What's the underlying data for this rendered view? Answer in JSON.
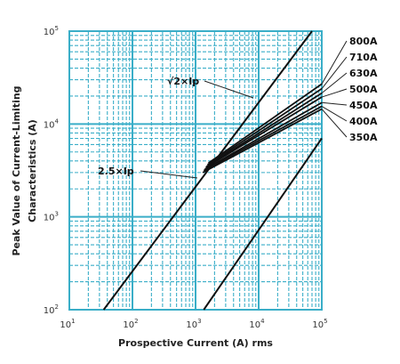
{
  "chart_data": {
    "type": "line",
    "xscale": "log",
    "yscale": "log",
    "xlim": [
      10,
      100000
    ],
    "ylim": [
      100,
      100000
    ],
    "grid": true,
    "grid_color": "#3aaec8",
    "line_color": "#111111",
    "xlabel": "Prospective Current (A) rms",
    "ylabel_line1": "Peak Value of Current-Limiting",
    "ylabel_line2": "Characteristics (A)",
    "x_ticks": [
      {
        "base": "10",
        "exp": "1"
      },
      {
        "base": "10",
        "exp": "2"
      },
      {
        "base": "10",
        "exp": "3"
      },
      {
        "base": "10",
        "exp": "4"
      },
      {
        "base": "10",
        "exp": "5"
      }
    ],
    "y_ticks": [
      {
        "base": "10",
        "exp": "2"
      },
      {
        "base": "10",
        "exp": "3"
      },
      {
        "base": "10",
        "exp": "4"
      },
      {
        "base": "10",
        "exp": "5"
      }
    ],
    "reference_lines": [
      {
        "label": "√2×Ip",
        "x": [
          35,
          70000
        ],
        "y": [
          100,
          100000
        ]
      },
      {
        "label": "2.5×Ip",
        "x": [
          1350,
          100000
        ],
        "y": [
          100,
          7000
        ]
      }
    ],
    "series": [
      {
        "name": "800A",
        "x": [
          1600,
          100000
        ],
        "y": [
          3800,
          27000
        ]
      },
      {
        "name": "710A",
        "x": [
          1550,
          100000
        ],
        "y": [
          3650,
          24000
        ]
      },
      {
        "name": "630A",
        "x": [
          1500,
          100000
        ],
        "y": [
          3500,
          21500
        ]
      },
      {
        "name": "500A",
        "x": [
          1450,
          100000
        ],
        "y": [
          3400,
          19500
        ]
      },
      {
        "name": "450A",
        "x": [
          1400,
          100000
        ],
        "y": [
          3250,
          17000
        ]
      },
      {
        "name": "400A",
        "x": [
          1350,
          100000
        ],
        "y": [
          3150,
          15500
        ]
      },
      {
        "name": "350A",
        "x": [
          1300,
          100000
        ],
        "y": [
          3000,
          14500
        ]
      }
    ]
  }
}
